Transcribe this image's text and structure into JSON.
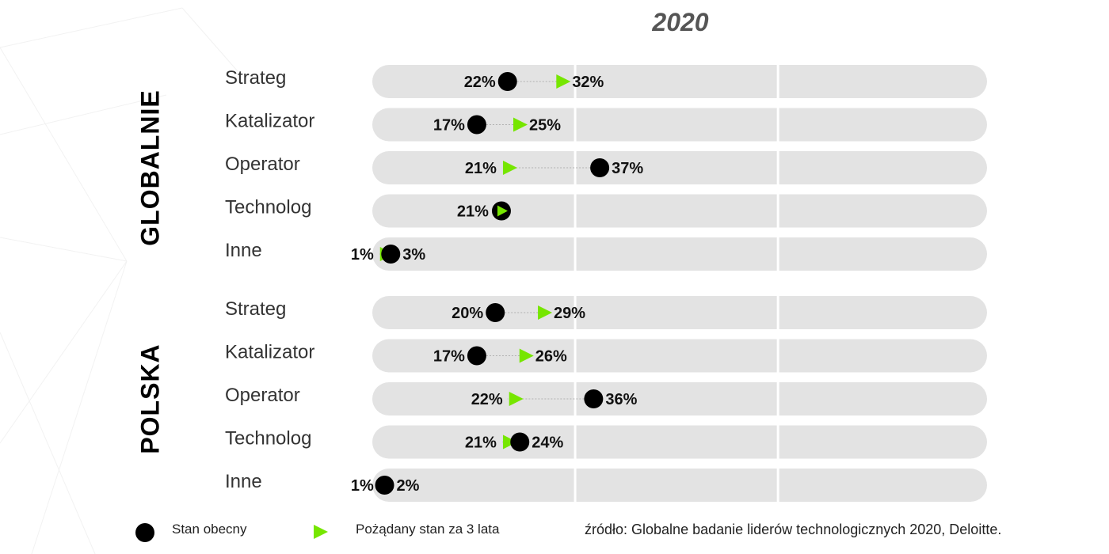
{
  "year": "2020",
  "colors": {
    "track": "#e3e3e3",
    "divider": "#ffffff",
    "current": "#000000",
    "desired": "#76e600",
    "connector": "#b0b0b0"
  },
  "legend": {
    "current_label": "Stan obecny",
    "desired_label": "Pożądany stan za 3 lata",
    "current_icon": "black-dot",
    "desired_icon": "green-triangle"
  },
  "source": "źródło: Globalne badanie liderów technologicznych 2020, Deloitte.",
  "chart_data": {
    "type": "dot-plot",
    "xlim": [
      0,
      100
    ],
    "grid_ticks": [
      33,
      66
    ],
    "groups": [
      {
        "name": "GLOBALNIE",
        "rows": [
          {
            "label": "Strateg",
            "current": 22,
            "desired": 32
          },
          {
            "label": "Katalizator",
            "current": 17,
            "desired": 25
          },
          {
            "label": "Operator",
            "current": 37,
            "desired": 21
          },
          {
            "label": "Technolog",
            "current": 21,
            "desired": 21
          },
          {
            "label": "Inne",
            "current": 3,
            "desired": 1
          }
        ]
      },
      {
        "name": "POLSKA",
        "rows": [
          {
            "label": "Strateg",
            "current": 20,
            "desired": 29
          },
          {
            "label": "Katalizator",
            "current": 17,
            "desired": 26
          },
          {
            "label": "Operator",
            "current": 36,
            "desired": 22
          },
          {
            "label": "Technolog",
            "current": 24,
            "desired": 21
          },
          {
            "label": "Inne",
            "current": 2,
            "desired": 1
          }
        ]
      }
    ]
  }
}
